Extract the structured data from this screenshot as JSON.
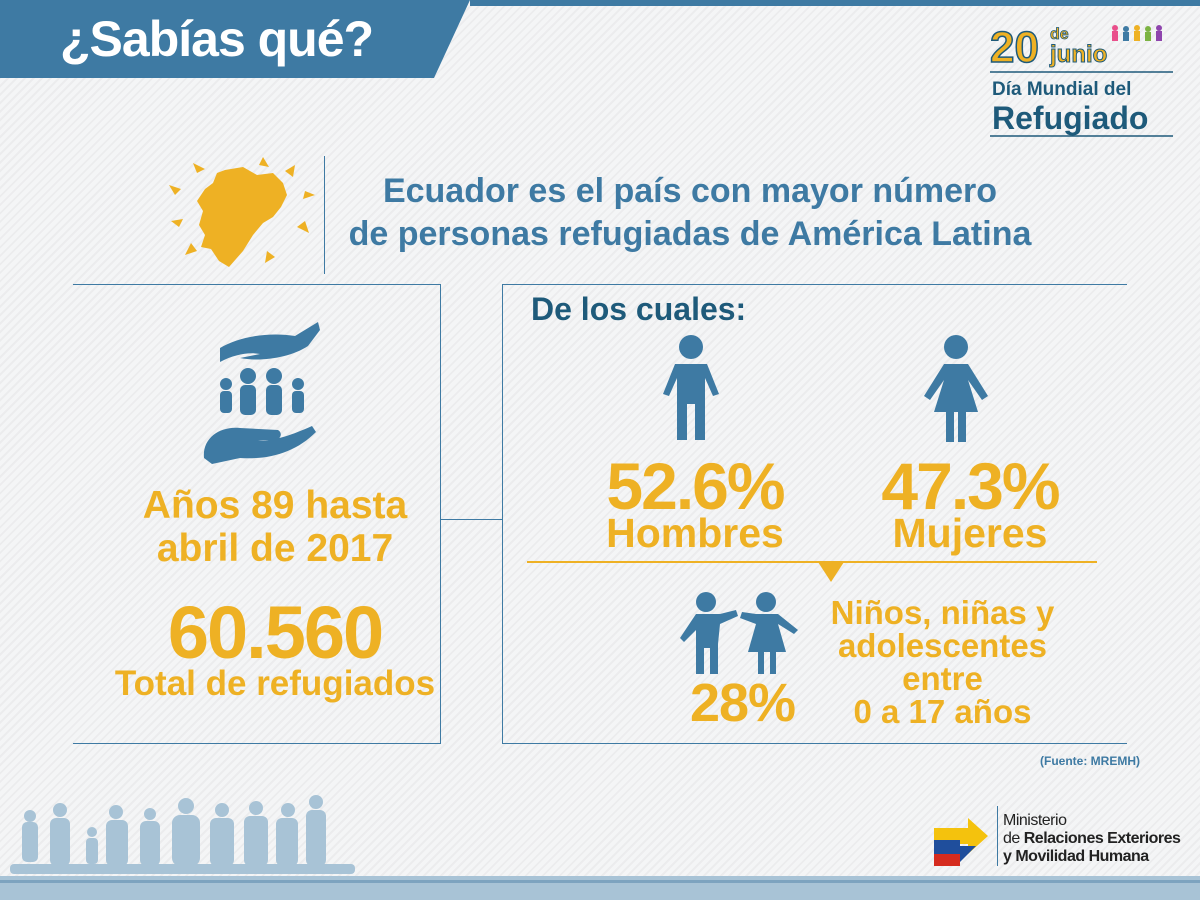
{
  "banner": {
    "title": "¿Sabías qué?"
  },
  "date_logo": {
    "day": "20",
    "de": "de",
    "month": "junio",
    "line1": "Día Mundial del",
    "line2": "Refugiado"
  },
  "headline": {
    "line1": "Ecuador es el país con mayor número",
    "line2": "de personas refugiadas de América Latina"
  },
  "left_panel": {
    "period_line1": "Años 89 hasta",
    "period_line2": "abril de 2017",
    "total_value": "60.560",
    "total_label": "Total de refugiados"
  },
  "right_panel": {
    "subtitle": "De los cuales:",
    "men_pct": "52.6%",
    "men_label": "Hombres",
    "women_pct": "47.3%",
    "women_label": "Mujeres",
    "children_pct": "28%",
    "children_line1": "Niños, niñas y",
    "children_line2": "adolescentes",
    "children_line3": "entre",
    "children_line4": "0 a 17 años",
    "source_prefix": "(Fuente: ",
    "source_name": "MREMH",
    "source_suffix": ")"
  },
  "ministry": {
    "line1": "Ministerio",
    "line2_prefix": "de ",
    "line2_bold": "Relaciones Exteriores",
    "line3": "y Movilidad Humana"
  },
  "colors": {
    "blue": "#3e7aa3",
    "dark_blue": "#1e5a7a",
    "yellow": "#eeb124",
    "background": "#f4f5f6"
  }
}
